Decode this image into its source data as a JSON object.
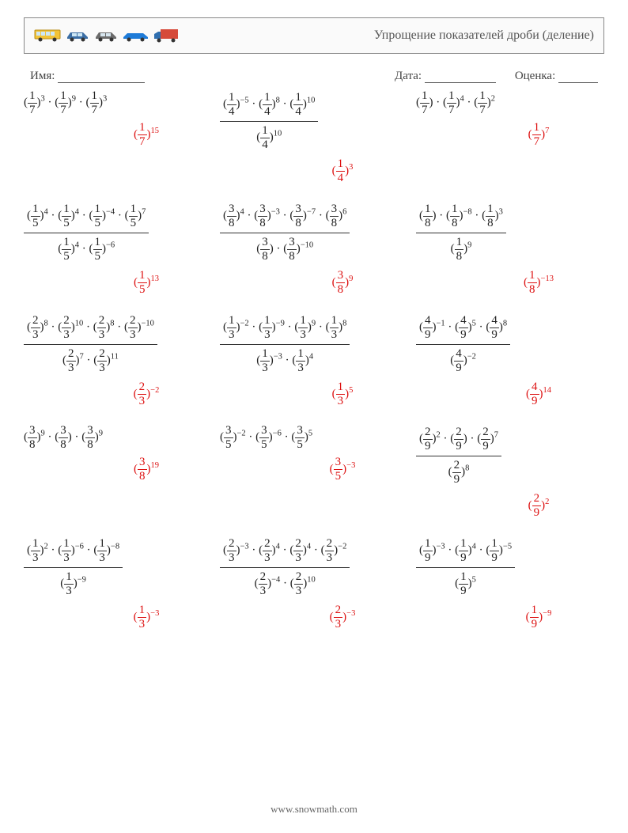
{
  "title": "Упрощение показателей дроби (деление)",
  "labels": {
    "name": "Имя:",
    "date": "Дата:",
    "grade": "Оценка:"
  },
  "blank_widths": {
    "name": 110,
    "date": 90,
    "grade": 50
  },
  "footer": "www.snowmath.com",
  "vehicle_colors": {
    "bus": "#f2c335",
    "car1": "#3b6ea5",
    "car2": "#6b6b6b",
    "car3": "#1e7bd8",
    "truck_cab": "#2f6fb0",
    "truck_box": "#d64a3a"
  },
  "colors": {
    "answer": "#d11a1a",
    "text": "#222222"
  },
  "problems": [
    [
      {
        "type": "simple",
        "base": [
          1,
          7
        ],
        "exps": [
          3,
          9,
          3
        ],
        "ans": {
          "base": [
            1,
            7
          ],
          "exp": 15
        }
      },
      {
        "type": "div",
        "numBase": [
          1,
          4
        ],
        "numExps": [
          -5,
          8,
          10
        ],
        "denBase": [
          1,
          4
        ],
        "denExps": [
          10
        ],
        "ans": {
          "base": [
            1,
            4
          ],
          "exp": 3
        }
      },
      {
        "type": "simple",
        "base": [
          1,
          7
        ],
        "exps": [
          null,
          4,
          2
        ],
        "ans": {
          "base": [
            1,
            7
          ],
          "exp": 7
        }
      }
    ],
    [
      {
        "type": "div",
        "numBase": [
          1,
          5
        ],
        "numExps": [
          4,
          4,
          -4,
          7
        ],
        "denBase": [
          1,
          5
        ],
        "denExps": [
          4,
          -6
        ],
        "ans": {
          "base": [
            1,
            5
          ],
          "exp": 13
        }
      },
      {
        "type": "div",
        "numBase": [
          3,
          8
        ],
        "numExps": [
          4,
          -3,
          -7,
          6
        ],
        "denBase": [
          3,
          8
        ],
        "denExps": [
          null,
          -10
        ],
        "ans": {
          "base": [
            3,
            8
          ],
          "exp": 9
        }
      },
      {
        "type": "div",
        "numBase": [
          1,
          8
        ],
        "numExps": [
          null,
          -8,
          3
        ],
        "denBase": [
          1,
          8
        ],
        "denExps": [
          9
        ],
        "ans": {
          "base": [
            1,
            8
          ],
          "exp": -13
        }
      }
    ],
    [
      {
        "type": "div",
        "numBase": [
          2,
          3
        ],
        "numExps": [
          8,
          10,
          8,
          -10
        ],
        "denBase": [
          2,
          3
        ],
        "denExps": [
          7,
          11
        ],
        "ans": {
          "base": [
            2,
            3
          ],
          "exp": -2
        }
      },
      {
        "type": "div",
        "numBase": [
          1,
          3
        ],
        "numExps": [
          -2,
          -9,
          9,
          8
        ],
        "denBase": [
          1,
          3
        ],
        "denExps": [
          -3,
          4
        ],
        "ans": {
          "base": [
            1,
            3
          ],
          "exp": 5
        }
      },
      {
        "type": "div",
        "numBase": [
          4,
          9
        ],
        "numExps": [
          -1,
          5,
          8
        ],
        "denBase": [
          4,
          9
        ],
        "denExps": [
          -2
        ],
        "ans": {
          "base": [
            4,
            9
          ],
          "exp": 14
        }
      }
    ],
    [
      {
        "type": "simple",
        "base": [
          3,
          8
        ],
        "exps": [
          9,
          null,
          9
        ],
        "ans": {
          "base": [
            3,
            8
          ],
          "exp": 19
        }
      },
      {
        "type": "simple",
        "base": [
          3,
          5
        ],
        "exps": [
          -2,
          -6,
          5
        ],
        "ans": {
          "base": [
            3,
            5
          ],
          "exp": -3
        }
      },
      {
        "type": "div",
        "numBase": [
          2,
          9
        ],
        "numExps": [
          2,
          null,
          7
        ],
        "denBase": [
          2,
          9
        ],
        "denExps": [
          8
        ],
        "ans": {
          "base": [
            2,
            9
          ],
          "exp": 2
        }
      }
    ],
    [
      {
        "type": "div",
        "numBase": [
          1,
          3
        ],
        "numExps": [
          2,
          -6,
          -8
        ],
        "denBase": [
          1,
          3
        ],
        "denExps": [
          -9
        ],
        "ans": {
          "base": [
            1,
            3
          ],
          "exp": -3
        }
      },
      {
        "type": "div",
        "numBase": [
          2,
          3
        ],
        "numExps": [
          -3,
          4,
          4,
          -2
        ],
        "denBase": [
          2,
          3
        ],
        "denExps": [
          -4,
          10
        ],
        "ans": {
          "base": [
            2,
            3
          ],
          "exp": -3
        }
      },
      {
        "type": "div",
        "numBase": [
          1,
          9
        ],
        "numExps": [
          -3,
          4,
          -5
        ],
        "denBase": [
          1,
          9
        ],
        "denExps": [
          5
        ],
        "ans": {
          "base": [
            1,
            9
          ],
          "exp": -9
        }
      }
    ]
  ]
}
